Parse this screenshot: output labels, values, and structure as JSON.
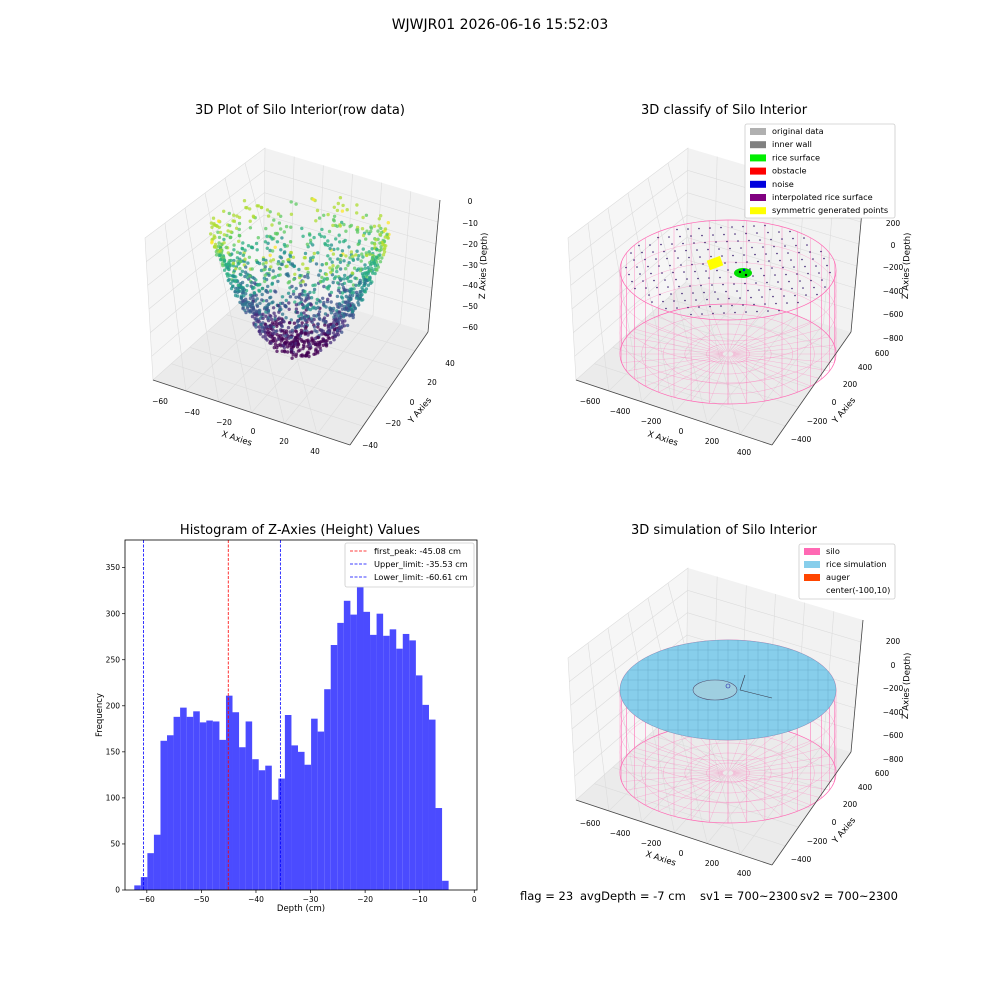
{
  "figure": {
    "suptitle": "WJWJR01 2026-06-16 15:52:03",
    "colors": {
      "silo": "#ff69b4",
      "rice_simulation": "#87ceeb",
      "auger": "#ff4500",
      "histogram": "#4b4bff",
      "first_peak_line": "#ff0000",
      "limit_lines": "#0000ff"
    }
  },
  "status": {
    "flag": "flag = 23",
    "avg_depth": "avgDepth = -7 cm",
    "sv1": "sv1 = 700~2300",
    "sv2": "sv2 = 700~2300"
  },
  "chart_data": [
    {
      "type": "scatter",
      "title": "3D Plot of Silo Interior(row data)",
      "xlabel": "X Axies",
      "ylabel": "Y Axies",
      "zlabel": "Z Axies (Depth)",
      "xticks": [
        "−60",
        "−40",
        "−20",
        "0",
        "20",
        "40"
      ],
      "yticks": [
        "−40",
        "−20",
        "0",
        "20",
        "40"
      ],
      "zticks": [
        "0",
        "−10",
        "−20",
        "−30",
        "−40",
        "−50",
        "−60"
      ],
      "colormap": "viridis"
    },
    {
      "type": "scatter",
      "title": "3D classify of Silo Interior",
      "xlabel": "X Axies",
      "ylabel": "Y Axies",
      "zlabel": "Z Axies (Depth)",
      "xticks": [
        "−600",
        "−400",
        "−200",
        "0",
        "200",
        "400"
      ],
      "yticks": [
        "−400",
        "−200",
        "0",
        "200",
        "400",
        "600"
      ],
      "zticks": [
        "200",
        "0",
        "−200",
        "−400",
        "−600",
        "−800"
      ],
      "legend_position": "top-right",
      "legend": [
        {
          "label": "original data",
          "color": "#b0b0b0"
        },
        {
          "label": "inner wall",
          "color": "#808080"
        },
        {
          "label": "rice surface",
          "color": "#00ee00"
        },
        {
          "label": "obstacle",
          "color": "#ff0000"
        },
        {
          "label": "noise",
          "color": "#0000dd"
        },
        {
          "label": "interpolated rice surface",
          "color": "#800080"
        },
        {
          "label": "symmetric generated points",
          "color": "#ffff00"
        }
      ]
    },
    {
      "type": "bar",
      "title": "Histogram of Z-Axies (Height) Values",
      "xlabel": "Depth (cm)",
      "ylabel": "Frequency",
      "xlim": [
        -64,
        0.5
      ],
      "ylim": [
        0,
        380
      ],
      "xticks": [
        "−60",
        "−50",
        "−40",
        "−30",
        "−20",
        "−10",
        "0"
      ],
      "xtick_values": [
        -60,
        -50,
        -40,
        -30,
        -20,
        -10,
        0
      ],
      "yticks": [
        "0",
        "50",
        "100",
        "150",
        "200",
        "250",
        "300",
        "350"
      ],
      "ytick_values": [
        0,
        50,
        100,
        150,
        200,
        250,
        300,
        350
      ],
      "bin_start": -62.3,
      "bin_width": 1.2,
      "values": [
        5,
        14,
        40,
        60,
        162,
        168,
        188,
        198,
        188,
        194,
        182,
        184,
        183,
        163,
        211,
        193,
        155,
        183,
        142,
        130,
        135,
        98,
        121,
        190,
        157,
        150,
        136,
        186,
        172,
        218,
        266,
        290,
        314,
        299,
        330,
        302,
        277,
        300,
        276,
        283,
        262,
        278,
        271,
        233,
        201,
        185,
        89,
        10
      ],
      "legend_position": "top-right",
      "lines": [
        {
          "label": "first_peak: -45.08 cm",
          "x": -45.08,
          "color": "#ff0000"
        },
        {
          "label": "Upper_limit: -35.53 cm",
          "x": -35.53,
          "color": "#0000ff"
        },
        {
          "label": "Lower_limit: -60.61 cm",
          "x": -60.61,
          "color": "#0000ff"
        }
      ]
    },
    {
      "type": "area",
      "title": "3D simulation of Silo Interior",
      "xlabel": "X Axies",
      "ylabel": "Y Axies",
      "zlabel": "Z Axies (Depth)",
      "xticks": [
        "−600",
        "−400",
        "−200",
        "0",
        "200",
        "400"
      ],
      "yticks": [
        "−400",
        "−200",
        "0",
        "200",
        "400",
        "600"
      ],
      "zticks": [
        "200",
        "0",
        "−200",
        "−400",
        "−600",
        "−800"
      ],
      "legend_position": "top-right",
      "legend": [
        {
          "label": "silo",
          "color": "#ff69b4"
        },
        {
          "label": "rice simulation",
          "color": "#87ceeb"
        },
        {
          "label": "auger",
          "color": "#ff4500"
        },
        {
          "label": "center(-100,10)",
          "color": ""
        }
      ]
    }
  ]
}
